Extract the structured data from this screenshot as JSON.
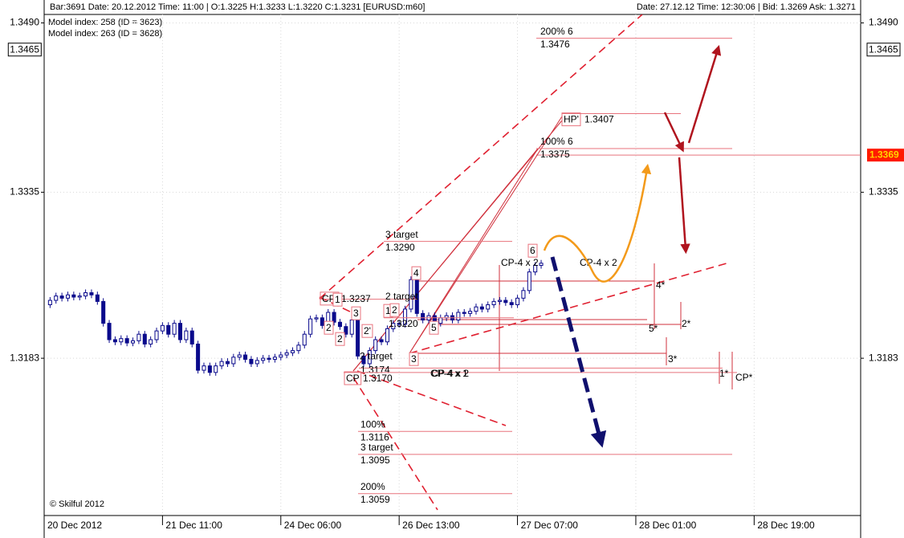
{
  "chart_data": {
    "type": "candlestick",
    "info_left": "Bar:3691  Date: 20.12.2012  Time: 11:00  |  O:1.3225  H:1.3233  L:1.3220  C:1.3231    [EURUSD:m60]",
    "info_right": "Date: 27.12.12  Time: 12:30:06  |  Bid: 1.3269  Ask: 1.3271",
    "notes": [
      "Model index: 258  (ID = 3623)",
      "Model index: 263  (ID = 3628)"
    ],
    "footer": "© Skilful 2012",
    "ylim": [
      1.3039,
      1.3511
    ],
    "yticks": [
      {
        "value": 1.349,
        "label": "1.3490"
      },
      {
        "value": 1.3335,
        "label": "1.3335"
      },
      {
        "value": 1.3183,
        "label": "1.3183"
      }
    ],
    "price_marker": {
      "value": 1.3465,
      "label": "1.3465"
    },
    "bid_marker": {
      "value": 1.3369,
      "label": "1.3369"
    },
    "xlim": [
      0,
      138
    ],
    "xticks": [
      {
        "value": 0,
        "label": "20 Dec 2012"
      },
      {
        "value": 20,
        "label": "21 Dec 11:00"
      },
      {
        "value": 40,
        "label": "24 Dec 06:00"
      },
      {
        "value": 60,
        "label": "26 Dec 13:00"
      },
      {
        "value": 80,
        "label": "27 Dec 07:00"
      },
      {
        "value": 100,
        "label": "28 Dec 01:00"
      },
      {
        "value": 120,
        "label": "28 Dec 19:00"
      }
    ],
    "grid": true,
    "up_color": "#ffffff",
    "down_color": "#0a0a8c",
    "x": [
      1,
      2,
      3,
      4,
      5,
      6,
      7,
      8,
      9,
      10,
      11,
      12,
      13,
      14,
      15,
      16,
      17,
      18,
      19,
      20,
      21,
      22,
      23,
      24,
      25,
      26,
      27,
      28,
      29,
      30,
      31,
      32,
      33,
      34,
      35,
      36,
      37,
      38,
      39,
      40,
      41,
      42,
      43,
      44,
      45,
      46,
      47,
      48,
      49,
      50,
      51,
      52,
      53,
      54,
      55,
      56,
      57,
      58,
      59,
      60,
      61,
      62,
      63,
      64,
      65,
      66,
      67,
      68,
      69,
      70,
      71,
      72,
      73,
      74,
      75,
      76,
      77,
      78,
      79,
      80,
      81,
      82,
      83,
      84
    ],
    "open": [
      1.3232,
      1.3236,
      1.324,
      1.3238,
      1.3241,
      1.3239,
      1.324,
      1.3243,
      1.3241,
      1.3235,
      1.3215,
      1.32,
      1.3198,
      1.3201,
      1.3197,
      1.3199,
      1.3205,
      1.3196,
      1.32,
      1.3208,
      1.3213,
      1.3205,
      1.3215,
      1.32,
      1.3208,
      1.3196,
      1.3172,
      1.3176,
      1.317,
      1.3176,
      1.318,
      1.3178,
      1.3184,
      1.3186,
      1.3182,
      1.3178,
      1.3181,
      1.3183,
      1.3182,
      1.3184,
      1.3186,
      1.3188,
      1.319,
      1.3195,
      1.3205,
      1.3219,
      1.322,
      1.3213,
      1.3225,
      1.3216,
      1.3212,
      1.3205,
      1.3218,
      1.3185,
      1.3178,
      1.319,
      1.32,
      1.3198,
      1.321,
      1.3215,
      1.3214,
      1.3228,
      1.3255,
      1.3224,
      1.3218,
      1.3222,
      1.3215,
      1.322,
      1.3222,
      1.3218,
      1.3225,
      1.3224,
      1.3226,
      1.323,
      1.3228,
      1.3232,
      1.3235,
      1.3236,
      1.3234,
      1.3232,
      1.3238,
      1.3245,
      1.3262,
      1.3268
    ],
    "high": [
      1.3239,
      1.3243,
      1.3243,
      1.3244,
      1.3244,
      1.3243,
      1.3246,
      1.3246,
      1.3244,
      1.3238,
      1.3218,
      1.3203,
      1.3204,
      1.3204,
      1.3202,
      1.3208,
      1.3208,
      1.3203,
      1.3211,
      1.3216,
      1.3216,
      1.3218,
      1.3218,
      1.3211,
      1.3211,
      1.3199,
      1.3179,
      1.3179,
      1.3179,
      1.3183,
      1.3183,
      1.3187,
      1.3189,
      1.3189,
      1.3185,
      1.3184,
      1.3186,
      1.3186,
      1.3187,
      1.3189,
      1.3191,
      1.3193,
      1.3198,
      1.3208,
      1.3222,
      1.3223,
      1.3223,
      1.3228,
      1.3228,
      1.3219,
      1.3215,
      1.3221,
      1.3221,
      1.3188,
      1.3193,
      1.3203,
      1.3203,
      1.3213,
      1.3218,
      1.3218,
      1.3231,
      1.3258,
      1.3258,
      1.3227,
      1.3225,
      1.3225,
      1.3223,
      1.3225,
      1.3225,
      1.3228,
      1.3228,
      1.3229,
      1.3233,
      1.3233,
      1.3235,
      1.3238,
      1.3239,
      1.3239,
      1.3237,
      1.3241,
      1.3248,
      1.3265,
      1.3271,
      1.3273
    ],
    "low": [
      1.3229,
      1.3233,
      1.3235,
      1.3235,
      1.3236,
      1.3236,
      1.3237,
      1.3238,
      1.3232,
      1.3212,
      1.3197,
      1.3195,
      1.3195,
      1.3194,
      1.3194,
      1.3196,
      1.3193,
      1.3193,
      1.3197,
      1.3205,
      1.3202,
      1.3202,
      1.3197,
      1.3197,
      1.3193,
      1.3169,
      1.3169,
      1.3167,
      1.3167,
      1.3173,
      1.3175,
      1.3175,
      1.3181,
      1.3179,
      1.3175,
      1.3175,
      1.3178,
      1.3179,
      1.3179,
      1.3181,
      1.3183,
      1.3185,
      1.3187,
      1.3192,
      1.3202,
      1.3216,
      1.321,
      1.321,
      1.3213,
      1.3209,
      1.3202,
      1.3202,
      1.3182,
      1.3175,
      1.3175,
      1.3187,
      1.3195,
      1.3195,
      1.3207,
      1.3211,
      1.3211,
      1.3225,
      1.3221,
      1.3215,
      1.3215,
      1.3212,
      1.3212,
      1.3217,
      1.3215,
      1.3215,
      1.3221,
      1.3221,
      1.3223,
      1.3225,
      1.3225,
      1.3229,
      1.3232,
      1.3231,
      1.3229,
      1.3229,
      1.3235,
      1.3242,
      1.3259,
      1.3265
    ],
    "close": [
      1.3236,
      1.324,
      1.3238,
      1.3241,
      1.3239,
      1.324,
      1.3243,
      1.3241,
      1.3235,
      1.3215,
      1.32,
      1.3198,
      1.3201,
      1.3197,
      1.3199,
      1.3205,
      1.3196,
      1.32,
      1.3208,
      1.3213,
      1.3205,
      1.3215,
      1.32,
      1.3208,
      1.3196,
      1.3172,
      1.3176,
      1.317,
      1.3176,
      1.318,
      1.3178,
      1.3184,
      1.3186,
      1.3182,
      1.3178,
      1.3181,
      1.3183,
      1.3182,
      1.3184,
      1.3186,
      1.3188,
      1.319,
      1.3195,
      1.3205,
      1.3219,
      1.322,
      1.3213,
      1.3225,
      1.3216,
      1.3212,
      1.3205,
      1.3218,
      1.3185,
      1.3178,
      1.319,
      1.32,
      1.3198,
      1.321,
      1.3215,
      1.3214,
      1.3228,
      1.3255,
      1.3224,
      1.3218,
      1.3222,
      1.3215,
      1.322,
      1.3222,
      1.3218,
      1.3225,
      1.3224,
      1.3226,
      1.323,
      1.3228,
      1.3232,
      1.3235,
      1.3236,
      1.3234,
      1.3232,
      1.3238,
      1.3245,
      1.3262,
      1.3268,
      1.327
    ],
    "level_color": "#e8737d",
    "levels": [
      {
        "name": "200% 6",
        "value": 1.3476
      },
      {
        "name": "HP'",
        "value": 1.3407
      },
      {
        "name": "100% 6",
        "value": 1.3375
      },
      {
        "name": "3 target",
        "value": 1.329,
        "value_label": "1.3290"
      },
      {
        "name": "CP'",
        "value": 1.3237
      },
      {
        "name": "2 target",
        "value": 1.322,
        "value_label": "1.3220"
      },
      {
        "name": "2 target",
        "value": 1.3174
      },
      {
        "name": "CP",
        "value": 1.317,
        "value_label": "1.3170"
      },
      {
        "name": "100%",
        "value": 1.3116
      },
      {
        "name": "3 target",
        "value": 1.3095
      },
      {
        "name": "200%",
        "value": 1.3059
      }
    ],
    "tags": [
      "CP-4 x 1",
      "CP-4 x 2",
      "CP-4 x 2",
      "CP-4 x 2",
      "4*",
      "5*",
      "2*",
      "3*",
      "1*",
      "CP*",
      "6",
      "4",
      "1",
      "2",
      "3",
      "2",
      "2'",
      "3",
      "5",
      "1",
      "2"
    ]
  }
}
